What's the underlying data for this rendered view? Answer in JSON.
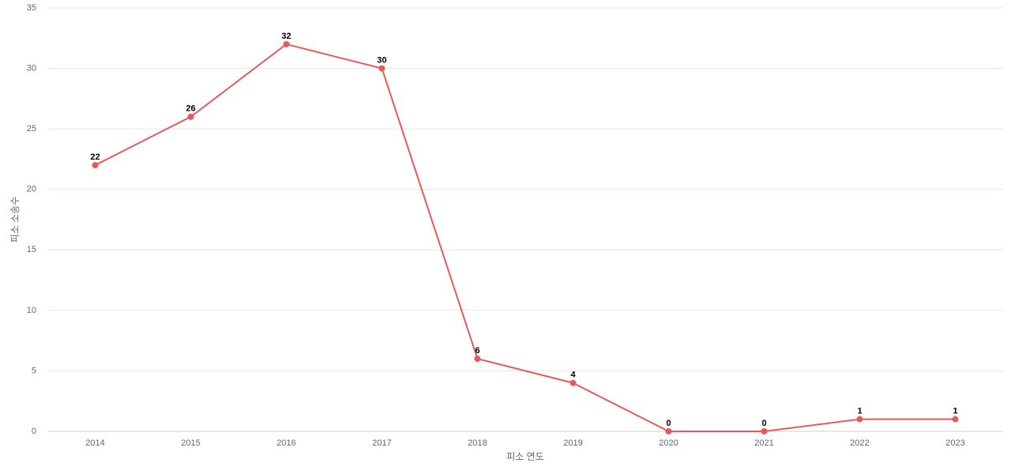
{
  "chart_data": {
    "type": "line",
    "x_label": "피소 연도",
    "y_label": "피소 소송수",
    "categories": [
      "2014",
      "2015",
      "2016",
      "2017",
      "2018",
      "2019",
      "2020",
      "2021",
      "2022",
      "2023"
    ],
    "series": [
      {
        "color": "#e85a5a",
        "values": [
          22,
          26,
          32,
          30,
          6,
          4,
          0,
          0,
          1,
          1
        ]
      }
    ],
    "ylim": [
      0,
      35
    ],
    "yticks": [
      0,
      5,
      10,
      15,
      20,
      25,
      30,
      35
    ],
    "grid": true
  }
}
